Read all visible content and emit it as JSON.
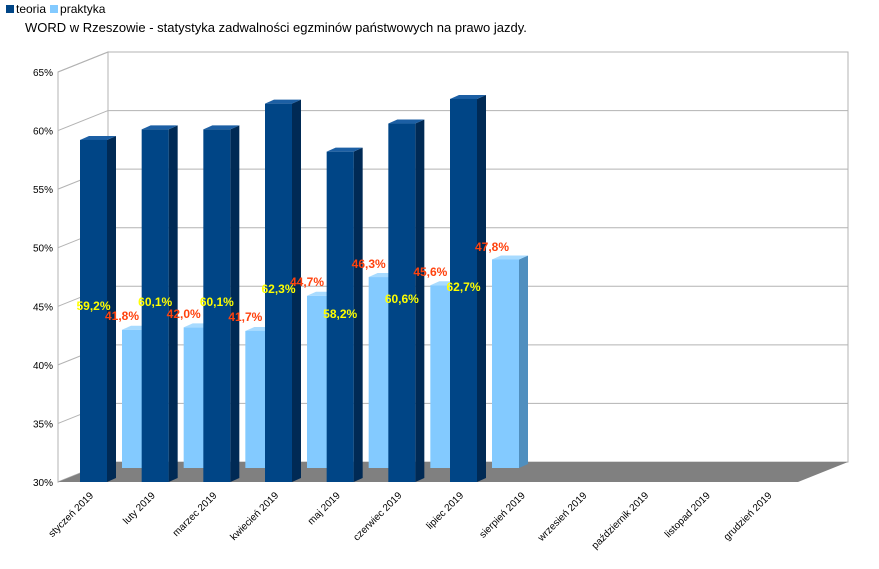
{
  "legend": {
    "teoria": "teoria",
    "praktyka": "praktyka"
  },
  "colors": {
    "teoria": "#004586",
    "teoria_dark": "#002a55",
    "teoria_top": "#1c5fa4",
    "praktyka": "#83caff",
    "praktyka_dark": "#4f8fbf",
    "praktyka_top": "#a8dbff",
    "teoria_label": "#ffff00",
    "praktyka_label": "#ff420e",
    "grid": "#b3b3b3",
    "floor": "#808080"
  },
  "chart_data": {
    "type": "bar",
    "title": "WORD w Rzeszowie - statystyka zadwalności egzminów państwowych na prawo jazdy.",
    "categories": [
      "styczeń 2019",
      "luty 2019",
      "marzec 2019",
      "kwiecień 2019",
      "maj 2019",
      "czerwiec 2019",
      "lipiec 2019",
      "sierpień 2019",
      "wrzesień 2019",
      "październik 2019",
      "listopad 2019",
      "grudzień 2019"
    ],
    "series": [
      {
        "name": "teoria",
        "values": [
          59.2,
          60.1,
          60.1,
          62.3,
          58.2,
          60.6,
          62.7,
          null,
          null,
          null,
          null,
          null
        ],
        "labels": [
          "59,2%",
          "60,1%",
          "60,1%",
          "62,3%",
          "58,2%",
          "60,6%",
          "62,7%",
          "",
          "",
          "",
          "",
          ""
        ]
      },
      {
        "name": "praktyka",
        "values": [
          41.8,
          42.0,
          41.7,
          44.7,
          46.3,
          45.6,
          47.8,
          null,
          null,
          null,
          null,
          null
        ],
        "labels": [
          "41,8%",
          "42,0%",
          "41,7%",
          "44,7%",
          "46,3%",
          "45,6%",
          "47,8%",
          "",
          "",
          "",
          "",
          ""
        ]
      }
    ],
    "ylim": [
      30,
      65
    ],
    "yticks": [
      "30%",
      "35%",
      "40%",
      "45%",
      "50%",
      "55%",
      "60%",
      "65%"
    ],
    "grid": true,
    "legend_position": "top-left"
  }
}
